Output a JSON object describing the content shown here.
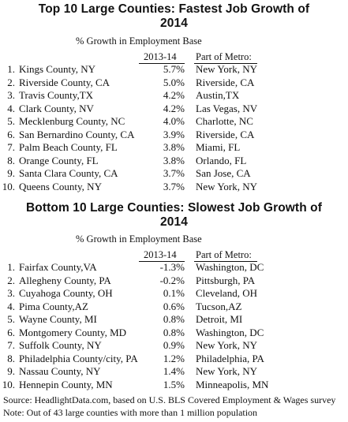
{
  "top": {
    "title_line1": "Top 10 Large Counties:  Fastest Job Growth of",
    "title_line2": "2014",
    "subtitle": "% Growth in Employment Base",
    "col_period": "2013-14",
    "col_metro": "Part of Metro:",
    "rows": [
      {
        "num": "1.",
        "county": "Kings County, NY",
        "pct": "5.7%",
        "metro": "New York, NY"
      },
      {
        "num": "2.",
        "county": "Riverside County, CA",
        "pct": "5.0%",
        "metro": "Riverside, CA"
      },
      {
        "num": "3.",
        "county": "Travis County,TX",
        "pct": "4.2%",
        "metro": "Austin,TX"
      },
      {
        "num": "4.",
        "county": "Clark County, NV",
        "pct": "4.2%",
        "metro": "Las Vegas, NV"
      },
      {
        "num": "5.",
        "county": "Mecklenburg County, NC",
        "pct": "4.0%",
        "metro": "Charlotte, NC"
      },
      {
        "num": "6.",
        "county": "San Bernardino County, CA",
        "pct": "3.9%",
        "metro": "Riverside, CA"
      },
      {
        "num": "7.",
        "county": "Palm Beach County, FL",
        "pct": "3.8%",
        "metro": "Miami, FL"
      },
      {
        "num": "8.",
        "county": "Orange County, FL",
        "pct": "3.8%",
        "metro": "Orlando, FL"
      },
      {
        "num": "9.",
        "county": "Santa Clara County, CA",
        "pct": "3.7%",
        "metro": "San Jose, CA"
      },
      {
        "num": "10.",
        "county": "Queens County, NY",
        "pct": "3.7%",
        "metro": "New York, NY"
      }
    ]
  },
  "bottom": {
    "title_line1": "Bottom 10 Large Counties:  Slowest Job Growth of",
    "title_line2": "2014",
    "subtitle": "% Growth in Employment Base",
    "col_period": "2013-14",
    "col_metro": "Part of Metro:",
    "rows": [
      {
        "num": "1.",
        "county": "Fairfax County,VA",
        "pct": "-1.3%",
        "metro": "Washington, DC"
      },
      {
        "num": "2.",
        "county": "Allegheny County, PA",
        "pct": "-0.2%",
        "metro": "Pittsburgh, PA"
      },
      {
        "num": "3.",
        "county": "Cuyahoga County, OH",
        "pct": "0.1%",
        "metro": "Cleveland, OH"
      },
      {
        "num": "4.",
        "county": "Pima County,AZ",
        "pct": "0.6%",
        "metro": "Tucson,AZ"
      },
      {
        "num": "5.",
        "county": "Wayne County, MI",
        "pct": "0.8%",
        "metro": "Detroit, MI"
      },
      {
        "num": "6.",
        "county": "Montgomery County, MD",
        "pct": "0.8%",
        "metro": "Washington, DC"
      },
      {
        "num": "7.",
        "county": "Suffolk County, NY",
        "pct": "0.9%",
        "metro": "New York, NY"
      },
      {
        "num": "8.",
        "county": "Philadelphia County/city, PA",
        "pct": "1.2%",
        "metro": "Philadelphia, PA"
      },
      {
        "num": "9.",
        "county": "Nassau County, NY",
        "pct": "1.4%",
        "metro": "New York, NY"
      },
      {
        "num": "10.",
        "county": "Hennepin County, MN",
        "pct": "1.5%",
        "metro": "Minneapolis, MN"
      }
    ]
  },
  "footer": {
    "source": "Source: HeadlightData.com, based on U.S. BLS Covered Employment & Wages survey",
    "note": "Note: Out of 43 large counties with more than 1 million population"
  }
}
